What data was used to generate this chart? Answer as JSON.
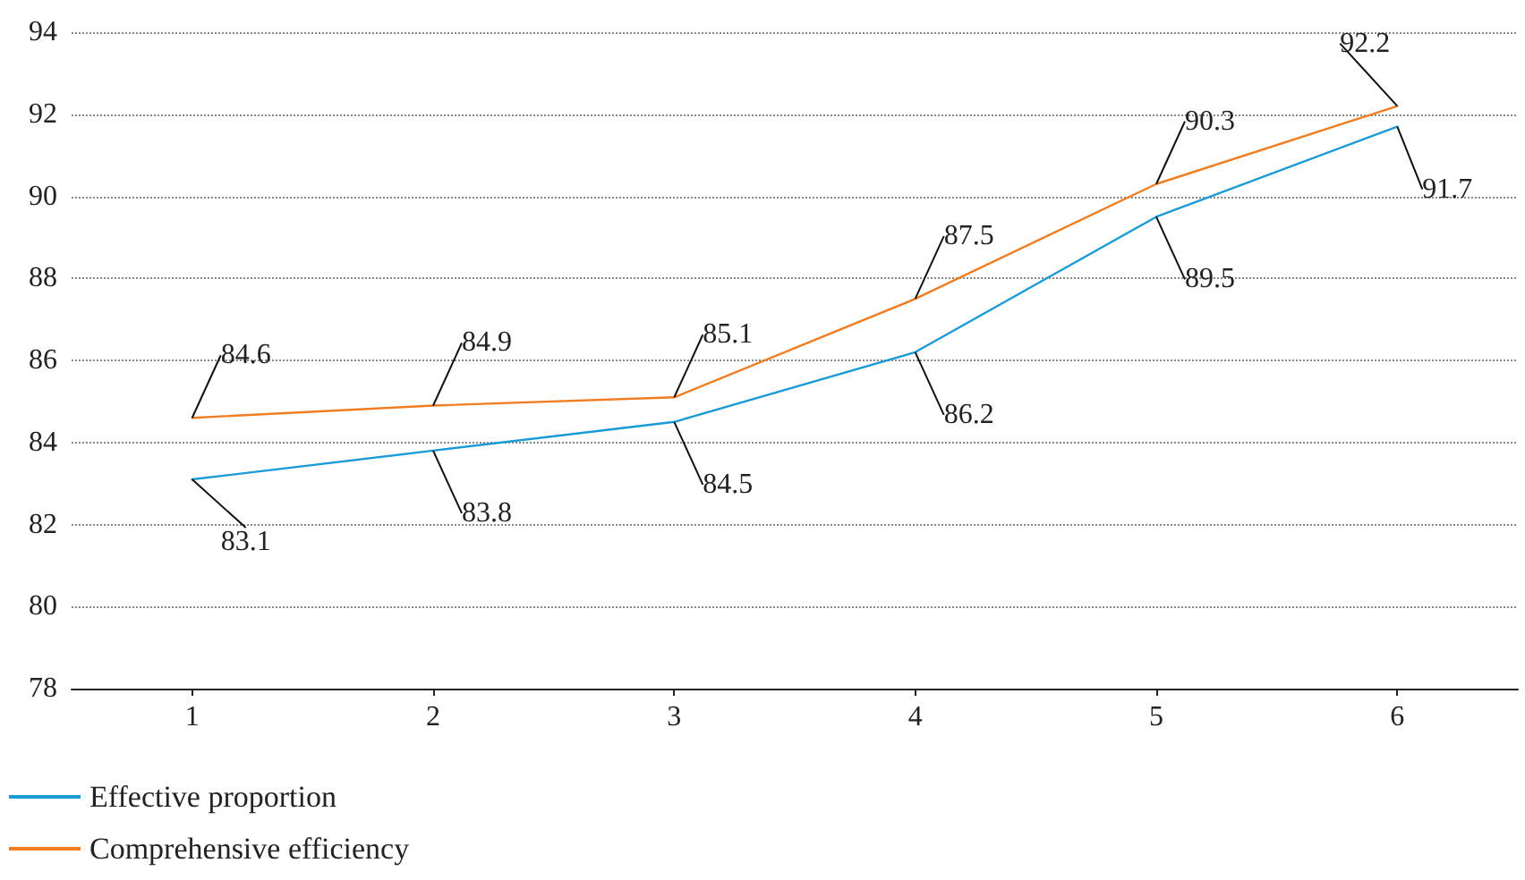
{
  "chart_data": {
    "type": "line",
    "categories": [
      "1",
      "2",
      "3",
      "4",
      "5",
      "6"
    ],
    "series": [
      {
        "name": "Effective proportion",
        "color": "#1a9ad6",
        "values": [
          83.1,
          83.8,
          84.5,
          86.2,
          89.5,
          91.7
        ]
      },
      {
        "name": "Comprehensive efficiency",
        "color": "#f07d22",
        "values": [
          84.6,
          84.9,
          85.1,
          87.5,
          90.3,
          92.2
        ]
      }
    ],
    "ylim": [
      78,
      94
    ],
    "yticks": [
      78,
      80,
      82,
      84,
      86,
      88,
      90,
      92,
      94
    ],
    "grid": "y",
    "legend": "bottom left",
    "marker": "none",
    "line_style": "solid",
    "data_labels": true
  }
}
